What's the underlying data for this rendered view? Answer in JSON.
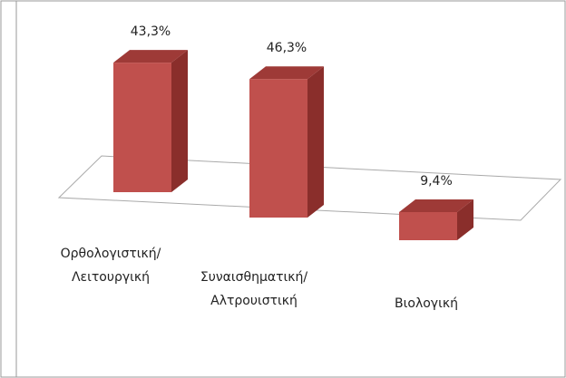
{
  "chart_data": {
    "type": "bar",
    "categories": [
      "Ορθολογιστική/Λειτουργική",
      "Συναισθηματική/Αλτρουιστική",
      "Βιολογική"
    ],
    "values": [
      43.3,
      46.3,
      9.4
    ],
    "value_labels": [
      "43,3%",
      "46,3%",
      "9,4%"
    ],
    "color": "#c0504d"
  }
}
